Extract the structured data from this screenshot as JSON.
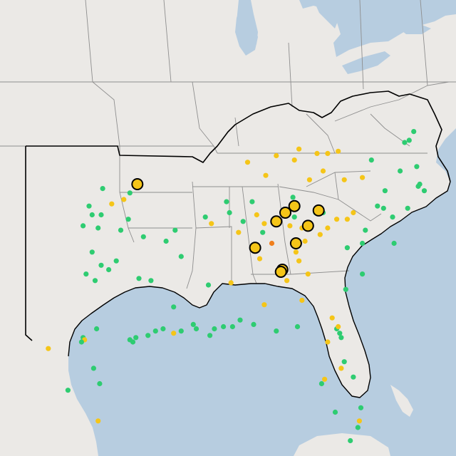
{
  "map": {
    "colors": {
      "water": "#b7cde0",
      "land": "#ebe9e6",
      "state_border": "#8e8e8e",
      "region_outline": "#000000",
      "good": "#2ecc71",
      "moderate": "#f5c518",
      "usg": "#f07f1d",
      "large_marker": "#f5c518"
    },
    "legend_categories": [
      "good",
      "moderate",
      "usg"
    ],
    "sites": [
      {
        "lon": -97.2,
        "lat": 36.7,
        "cat": "good"
      },
      {
        "lon": -98.1,
        "lat": 35.9,
        "cat": "good"
      },
      {
        "lon": -97.9,
        "lat": 35.5,
        "cat": "good"
      },
      {
        "lon": -97.3,
        "lat": 35.5,
        "cat": "good"
      },
      {
        "lon": -96.6,
        "lat": 36.0,
        "cat": "moderate"
      },
      {
        "lon": -95.8,
        "lat": 36.2,
        "cat": "moderate"
      },
      {
        "lon": -95.4,
        "lat": 36.5,
        "cat": "good"
      },
      {
        "lon": -98.5,
        "lat": 35.0,
        "cat": "good"
      },
      {
        "lon": -97.5,
        "lat": 34.9,
        "cat": "good"
      },
      {
        "lon": -96.0,
        "lat": 34.8,
        "cat": "good"
      },
      {
        "lon": -95.5,
        "lat": 35.3,
        "cat": "good"
      },
      {
        "lon": -94.5,
        "lat": 34.5,
        "cat": "good"
      },
      {
        "lon": -97.9,
        "lat": 33.8,
        "cat": "good"
      },
      {
        "lon": -97.3,
        "lat": 33.2,
        "cat": "good"
      },
      {
        "lon": -96.8,
        "lat": 33.0,
        "cat": "good"
      },
      {
        "lon": -96.3,
        "lat": 33.4,
        "cat": "good"
      },
      {
        "lon": -97.7,
        "lat": 32.5,
        "cat": "good"
      },
      {
        "lon": -98.3,
        "lat": 32.8,
        "cat": "good"
      },
      {
        "lon": -94.0,
        "lat": 32.5,
        "cat": "good"
      },
      {
        "lon": -94.8,
        "lat": 32.6,
        "cat": "good"
      },
      {
        "lon": -98.5,
        "lat": 29.9,
        "cat": "good"
      },
      {
        "lon": -98.4,
        "lat": 29.8,
        "cat": "moderate"
      },
      {
        "lon": -98.6,
        "lat": 29.7,
        "cat": "good"
      },
      {
        "lon": -97.6,
        "lat": 30.3,
        "cat": "good"
      },
      {
        "lon": -95.4,
        "lat": 29.8,
        "cat": "good"
      },
      {
        "lon": -95.2,
        "lat": 29.7,
        "cat": "good"
      },
      {
        "lon": -95.0,
        "lat": 29.9,
        "cat": "good"
      },
      {
        "lon": -94.2,
        "lat": 30.0,
        "cat": "good"
      },
      {
        "lon": -93.7,
        "lat": 30.2,
        "cat": "good"
      },
      {
        "lon": -97.4,
        "lat": 27.8,
        "cat": "good"
      },
      {
        "lon": -97.8,
        "lat": 28.5,
        "cat": "good"
      },
      {
        "lon": -99.5,
        "lat": 27.5,
        "cat": "good"
      },
      {
        "lon": -97.5,
        "lat": 26.1,
        "cat": "moderate"
      },
      {
        "lon": -100.8,
        "lat": 29.4,
        "cat": "moderate"
      },
      {
        "lon": -92.4,
        "lat": 34.8,
        "cat": "good"
      },
      {
        "lon": -93.0,
        "lat": 34.3,
        "cat": "good"
      },
      {
        "lon": -92.0,
        "lat": 33.6,
        "cat": "good"
      },
      {
        "lon": -90.4,
        "lat": 35.4,
        "cat": "good"
      },
      {
        "lon": -92.5,
        "lat": 31.3,
        "cat": "good"
      },
      {
        "lon": -91.2,
        "lat": 30.5,
        "cat": "good"
      },
      {
        "lon": -91.0,
        "lat": 30.3,
        "cat": "good"
      },
      {
        "lon": -90.1,
        "lat": 30.0,
        "cat": "good"
      },
      {
        "lon": -89.8,
        "lat": 30.3,
        "cat": "good"
      },
      {
        "lon": -92.0,
        "lat": 30.2,
        "cat": "good"
      },
      {
        "lon": -92.5,
        "lat": 30.1,
        "cat": "moderate"
      },
      {
        "lon": -93.2,
        "lat": 30.3,
        "cat": "good"
      },
      {
        "lon": -90.2,
        "lat": 32.3,
        "cat": "good"
      },
      {
        "lon": -88.7,
        "lat": 32.4,
        "cat": "moderate"
      },
      {
        "lon": -89.2,
        "lat": 30.4,
        "cat": "good"
      },
      {
        "lon": -88.6,
        "lat": 30.4,
        "cat": "good"
      },
      {
        "lon": -88.1,
        "lat": 30.7,
        "cat": "good"
      },
      {
        "lon": -87.2,
        "lat": 30.5,
        "cat": "good"
      },
      {
        "lon": -86.5,
        "lat": 31.4,
        "cat": "moderate"
      },
      {
        "lon": -90.0,
        "lat": 35.1,
        "cat": "moderate"
      },
      {
        "lon": -88.8,
        "lat": 35.6,
        "cat": "good"
      },
      {
        "lon": -89.0,
        "lat": 36.1,
        "cat": "good"
      },
      {
        "lon": -88.2,
        "lat": 34.7,
        "cat": "moderate"
      },
      {
        "lon": -87.9,
        "lat": 35.2,
        "cat": "good"
      },
      {
        "lon": -87.3,
        "lat": 36.1,
        "cat": "good"
      },
      {
        "lon": -87.0,
        "lat": 35.5,
        "cat": "moderate"
      },
      {
        "lon": -86.5,
        "lat": 35.1,
        "cat": "moderate"
      },
      {
        "lon": -86.0,
        "lat": 34.2,
        "cat": "usg"
      },
      {
        "lon": -86.8,
        "lat": 33.5,
        "cat": "moderate"
      },
      {
        "lon": -85.5,
        "lat": 33.0,
        "cat": "moderate"
      },
      {
        "lon": -84.8,
        "lat": 35.0,
        "cat": "moderate"
      },
      {
        "lon": -84.5,
        "lat": 35.4,
        "cat": "good"
      },
      {
        "lon": -84.0,
        "lat": 34.9,
        "cat": "moderate"
      },
      {
        "lon": -84.4,
        "lat": 33.8,
        "cat": "moderate"
      },
      {
        "lon": -84.2,
        "lat": 33.4,
        "cat": "moderate"
      },
      {
        "lon": -83.6,
        "lat": 32.8,
        "cat": "moderate"
      },
      {
        "lon": -83.8,
        "lat": 34.3,
        "cat": "moderate"
      },
      {
        "lon": -85.0,
        "lat": 32.5,
        "cat": "moderate"
      },
      {
        "lon": -84.0,
        "lat": 31.6,
        "cat": "moderate"
      },
      {
        "lon": -82.8,
        "lat": 34.6,
        "cat": "moderate"
      },
      {
        "lon": -82.3,
        "lat": 34.9,
        "cat": "moderate"
      },
      {
        "lon": -81.7,
        "lat": 35.3,
        "cat": "moderate"
      },
      {
        "lon": -81.0,
        "lat": 35.3,
        "cat": "moderate"
      },
      {
        "lon": -80.6,
        "lat": 35.6,
        "cat": "moderate"
      },
      {
        "lon": -81.0,
        "lat": 34.0,
        "cat": "good"
      },
      {
        "lon": -80.0,
        "lat": 34.2,
        "cat": "good"
      },
      {
        "lon": -79.8,
        "lat": 34.8,
        "cat": "good"
      },
      {
        "lon": -81.1,
        "lat": 32.1,
        "cat": "good"
      },
      {
        "lon": -80.0,
        "lat": 32.8,
        "cat": "good"
      },
      {
        "lon": -81.7,
        "lat": 30.3,
        "cat": "good"
      },
      {
        "lon": -81.6,
        "lat": 30.4,
        "cat": "moderate"
      },
      {
        "lon": -81.5,
        "lat": 30.1,
        "cat": "good"
      },
      {
        "lon": -81.4,
        "lat": 29.9,
        "cat": "good"
      },
      {
        "lon": -82.3,
        "lat": 29.7,
        "cat": "moderate"
      },
      {
        "lon": -82.0,
        "lat": 30.8,
        "cat": "moderate"
      },
      {
        "lon": -84.3,
        "lat": 30.4,
        "cat": "good"
      },
      {
        "lon": -85.7,
        "lat": 30.2,
        "cat": "good"
      },
      {
        "lon": -81.4,
        "lat": 28.5,
        "cat": "moderate"
      },
      {
        "lon": -81.2,
        "lat": 28.8,
        "cat": "good"
      },
      {
        "lon": -82.5,
        "lat": 28.0,
        "cat": "moderate"
      },
      {
        "lon": -82.7,
        "lat": 27.8,
        "cat": "good"
      },
      {
        "lon": -80.6,
        "lat": 28.1,
        "cat": "good"
      },
      {
        "lon": -81.8,
        "lat": 26.5,
        "cat": "good"
      },
      {
        "lon": -80.2,
        "lat": 26.1,
        "cat": "moderate"
      },
      {
        "lon": -80.3,
        "lat": 25.8,
        "cat": "good"
      },
      {
        "lon": -80.1,
        "lat": 26.7,
        "cat": "good"
      },
      {
        "lon": -80.8,
        "lat": 25.2,
        "cat": "good"
      },
      {
        "lon": -87.6,
        "lat": 37.9,
        "cat": "moderate"
      },
      {
        "lon": -86.4,
        "lat": 37.3,
        "cat": "moderate"
      },
      {
        "lon": -85.7,
        "lat": 38.2,
        "cat": "moderate"
      },
      {
        "lon": -84.5,
        "lat": 38.0,
        "cat": "moderate"
      },
      {
        "lon": -84.2,
        "lat": 38.5,
        "cat": "moderate"
      },
      {
        "lon": -83.0,
        "lat": 38.3,
        "cat": "moderate"
      },
      {
        "lon": -82.3,
        "lat": 38.3,
        "cat": "moderate"
      },
      {
        "lon": -82.6,
        "lat": 37.5,
        "cat": "moderate"
      },
      {
        "lon": -81.6,
        "lat": 38.4,
        "cat": "moderate"
      },
      {
        "lon": -83.5,
        "lat": 37.1,
        "cat": "moderate"
      },
      {
        "lon": -80.0,
        "lat": 37.2,
        "cat": "moderate"
      },
      {
        "lon": -81.2,
        "lat": 37.1,
        "cat": "moderate"
      },
      {
        "lon": -79.4,
        "lat": 38.0,
        "cat": "good"
      },
      {
        "lon": -77.5,
        "lat": 37.5,
        "cat": "good"
      },
      {
        "lon": -78.5,
        "lat": 36.6,
        "cat": "good"
      },
      {
        "lon": -78.6,
        "lat": 35.8,
        "cat": "good"
      },
      {
        "lon": -79.0,
        "lat": 35.9,
        "cat": "good"
      },
      {
        "lon": -78.0,
        "lat": 35.4,
        "cat": "good"
      },
      {
        "lon": -77.9,
        "lat": 34.2,
        "cat": "good"
      },
      {
        "lon": -77.0,
        "lat": 35.8,
        "cat": "good"
      },
      {
        "lon": -76.3,
        "lat": 36.8,
        "cat": "good"
      },
      {
        "lon": -76.2,
        "lat": 36.9,
        "cat": "good"
      },
      {
        "lon": -75.9,
        "lat": 36.6,
        "cat": "good"
      },
      {
        "lon": -77.2,
        "lat": 38.8,
        "cat": "good"
      },
      {
        "lon": -76.9,
        "lat": 38.9,
        "cat": "good"
      },
      {
        "lon": -76.6,
        "lat": 39.3,
        "cat": "good"
      },
      {
        "lon": -76.4,
        "lat": 37.7,
        "cat": "good"
      },
      {
        "lon": -86.6,
        "lat": 34.7,
        "cat": "good"
      },
      {
        "lon": -84.6,
        "lat": 36.3,
        "cat": "good"
      },
      {
        "lon": -83.1,
        "lat": 35.6,
        "cat": "good"
      },
      {
        "lon": -82.6,
        "lat": 35.6,
        "cat": "good"
      }
    ],
    "highlighted_sites": [
      {
        "lon": -94.9,
        "lat": 36.9
      },
      {
        "lon": -85.7,
        "lat": 35.2
      },
      {
        "lon": -85.1,
        "lat": 35.6
      },
      {
        "lon": -84.5,
        "lat": 35.9
      },
      {
        "lon": -82.9,
        "lat": 35.7
      },
      {
        "lon": -83.6,
        "lat": 35.0
      },
      {
        "lon": -84.4,
        "lat": 34.2
      },
      {
        "lon": -87.1,
        "lat": 34.0
      },
      {
        "lon": -85.3,
        "lat": 33.0
      },
      {
        "lon": -85.4,
        "lat": 32.9
      }
    ]
  }
}
